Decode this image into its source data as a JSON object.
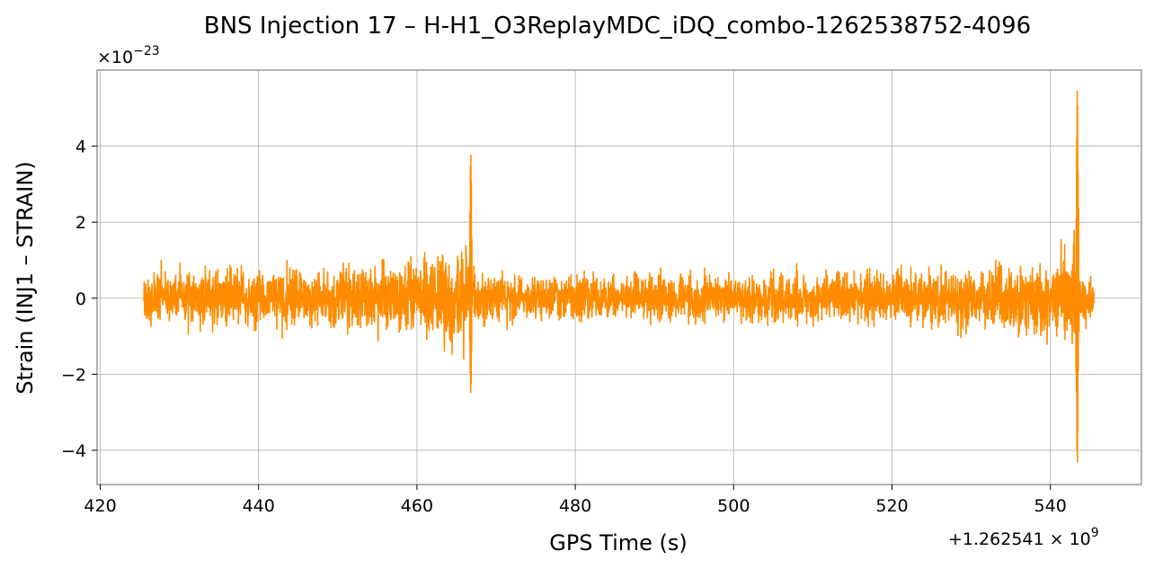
{
  "chart_data": {
    "type": "line",
    "title": "BNS Injection 17 – H-H1_O3ReplayMDC_iDQ_combo-1262538752-4096",
    "xlabel": "GPS Time (s)",
    "ylabel": "Strain (INJ1 – STRAIN)",
    "x_offset_label": "+1.262541 × 10",
    "x_offset_exponent": "9",
    "y_scale_label": "×10",
    "y_scale_exponent": "−23",
    "xlim": [
      419.6,
      551.5
    ],
    "ylim": [
      -4.9,
      6.0
    ],
    "x_ticks": [
      420,
      440,
      460,
      480,
      500,
      520,
      540
    ],
    "x_tick_labels": [
      "420",
      "440",
      "460",
      "480",
      "500",
      "520",
      "540"
    ],
    "y_ticks": [
      -4,
      -2,
      0,
      2,
      4
    ],
    "y_tick_labels": [
      "−4",
      "−2",
      "0",
      "2",
      "4"
    ],
    "grid": true,
    "series": [
      {
        "color": "#ff8c00",
        "x_range": [
          425.5,
          545.5
        ],
        "baseline_amplitude": [
          [
            425.5,
            1.0
          ],
          [
            430,
            1.05
          ],
          [
            440,
            1.1
          ],
          [
            450,
            1.25
          ],
          [
            455,
            1.3
          ],
          [
            460,
            1.5
          ],
          [
            464,
            1.7
          ],
          [
            466,
            2.0
          ],
          [
            467,
            1.0
          ],
          [
            470,
            0.9
          ],
          [
            480,
            0.85
          ],
          [
            490,
            0.85
          ],
          [
            500,
            0.9
          ],
          [
            510,
            0.95
          ],
          [
            520,
            1.05
          ],
          [
            530,
            1.2
          ],
          [
            538,
            1.4
          ],
          [
            541,
            1.7
          ],
          [
            543,
            2.2
          ],
          [
            544,
            1.0
          ],
          [
            545.5,
            0.9
          ]
        ],
        "peaks": [
          {
            "x": 466.8,
            "max": 3.8,
            "min": -2.5
          },
          {
            "x": 543.4,
            "max": 5.5,
            "min": -4.35
          }
        ]
      }
    ]
  }
}
